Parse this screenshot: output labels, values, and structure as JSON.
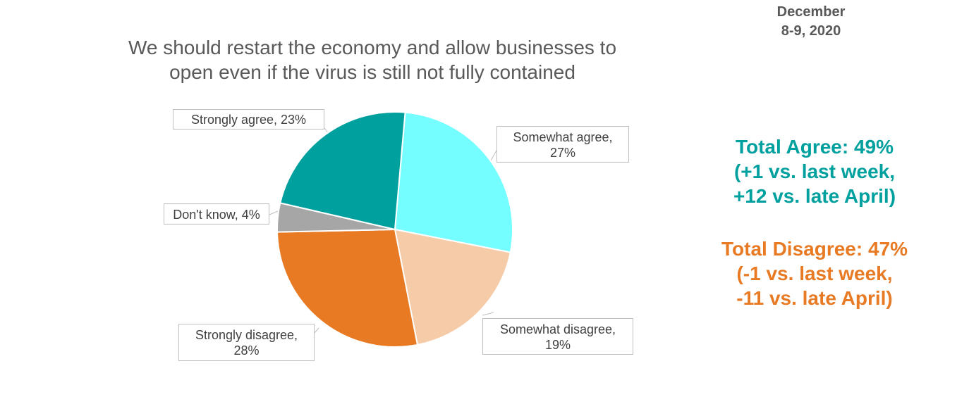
{
  "date": {
    "line1": "December",
    "line2": "8-9, 2020"
  },
  "title": {
    "line1": "We should restart the economy and allow businesses to",
    "line2": "open even if the virus is still not fully contained"
  },
  "chart_data": {
    "type": "pie",
    "slices": [
      {
        "label": "Somewhat agree",
        "value": 27,
        "color": "#75FEFF"
      },
      {
        "label": "Somewhat disagree",
        "value": 19,
        "color": "#F6CBA8"
      },
      {
        "label": "Strongly disagree",
        "value": 28,
        "color": "#E87A24"
      },
      {
        "label": "Don't know",
        "value": 4,
        "color": "#A6A6A6"
      },
      {
        "label": "Strongly agree",
        "value": 23,
        "color": "#00A09E"
      }
    ]
  },
  "labels": {
    "strongly_agree": {
      "line1": "Strongly agree, 23%"
    },
    "somewhat_agree": {
      "line1": "Somewhat agree,",
      "line2": "27%"
    },
    "dont_know": {
      "line1": "Don't know, 4%"
    },
    "strongly_disagree": {
      "line1": "Strongly disagree,",
      "line2": "28%"
    },
    "somewhat_disagree": {
      "line1": "Somewhat disagree,",
      "line2": "19%"
    }
  },
  "summary": {
    "agree": {
      "line1": "Total Agree: 49%",
      "line2": "(+1 vs. last week,",
      "line3": "+12 vs. late April)",
      "color": "#00A09E"
    },
    "disagree": {
      "line1": "Total Disagree: 47%",
      "line2": "(-1 vs. last week,",
      "line3": "-11 vs. late April)",
      "color": "#E87A24"
    }
  }
}
